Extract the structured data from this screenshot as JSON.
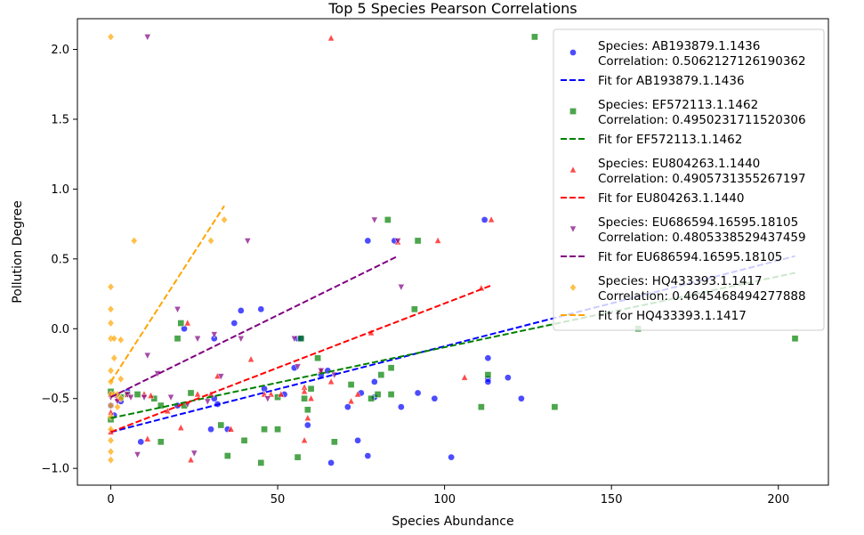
{
  "chart_data": {
    "type": "scatter",
    "title": "Top 5 Species Pearson Correlations",
    "xlabel": "Species Abundance",
    "ylabel": "Pollution Degree",
    "xlim": [
      -10,
      215
    ],
    "ylim": [
      -1.12,
      2.22
    ],
    "xticks": [
      0,
      50,
      100,
      150,
      200
    ],
    "xtick_labels": [
      "0",
      "50",
      "100",
      "150",
      "200"
    ],
    "yticks": [
      -1.0,
      -0.5,
      0.0,
      0.5,
      1.0,
      1.5,
      2.0
    ],
    "ytick_labels": [
      "−1.0",
      "−0.5",
      "0.0",
      "0.5",
      "1.0",
      "1.5",
      "2.0"
    ],
    "grid": false,
    "legend_position": "top-right",
    "series": [
      {
        "name": "AB193879.1.1436",
        "label": "Species: AB193879.1.1436",
        "correlation_label": "Correlation: 0.5062127126190362",
        "fit_label": "Fit for AB193879.1.1436",
        "color": "#0000ff",
        "marker": "circle",
        "fit": [
          [
            0,
            -0.74
          ],
          [
            205,
            0.52
          ]
        ],
        "points": [
          [
            0,
            -0.47
          ],
          [
            0,
            -0.55
          ],
          [
            1,
            -0.62
          ],
          [
            2,
            -0.48
          ],
          [
            3,
            -0.52
          ],
          [
            5,
            -0.45
          ],
          [
            9,
            -0.81
          ],
          [
            20,
            -0.55
          ],
          [
            22,
            0.0
          ],
          [
            31,
            -0.07
          ],
          [
            30,
            -0.72
          ],
          [
            31,
            -0.5
          ],
          [
            32,
            -0.54
          ],
          [
            35,
            -0.72
          ],
          [
            37,
            0.04
          ],
          [
            39,
            0.13
          ],
          [
            45,
            0.14
          ],
          [
            46,
            -0.43
          ],
          [
            52,
            -0.47
          ],
          [
            55,
            -0.28
          ],
          [
            56,
            -0.07
          ],
          [
            57,
            -0.07
          ],
          [
            59,
            -0.69
          ],
          [
            63,
            -0.33
          ],
          [
            65,
            -0.3
          ],
          [
            66,
            -0.96
          ],
          [
            71,
            -0.56
          ],
          [
            74,
            -0.8
          ],
          [
            75,
            -0.46
          ],
          [
            77,
            -0.91
          ],
          [
            77,
            0.63
          ],
          [
            79,
            -0.38
          ],
          [
            79,
            -0.49
          ],
          [
            85,
            0.63
          ],
          [
            87,
            -0.56
          ],
          [
            92,
            -0.46
          ],
          [
            97,
            -0.5
          ],
          [
            102,
            -0.92
          ],
          [
            112,
            0.78
          ],
          [
            113,
            -0.21
          ],
          [
            113,
            -0.36
          ],
          [
            113,
            -0.38
          ],
          [
            119,
            -0.35
          ],
          [
            123,
            -0.5
          ]
        ]
      },
      {
        "name": "EF572113.1.1462",
        "label": "Species: EF572113.1.1462",
        "correlation_label": "Correlation: 0.4950231711520306",
        "fit_label": "Fit for EF572113.1.1462",
        "color": "#008000",
        "marker": "square",
        "fit": [
          [
            0,
            -0.64
          ],
          [
            205,
            0.4
          ]
        ],
        "points": [
          [
            0,
            -0.45
          ],
          [
            0,
            -0.65
          ],
          [
            3,
            -0.49
          ],
          [
            5,
            -0.47
          ],
          [
            8,
            -0.47
          ],
          [
            13,
            -0.5
          ],
          [
            15,
            -0.55
          ],
          [
            15,
            -0.81
          ],
          [
            20,
            -0.07
          ],
          [
            21,
            0.04
          ],
          [
            22,
            -0.55
          ],
          [
            24,
            -0.46
          ],
          [
            33,
            -0.69
          ],
          [
            35,
            -0.91
          ],
          [
            40,
            -0.8
          ],
          [
            45,
            -0.96
          ],
          [
            46,
            -0.72
          ],
          [
            50,
            -0.49
          ],
          [
            50,
            -0.72
          ],
          [
            56,
            -0.92
          ],
          [
            57,
            -0.07
          ],
          [
            58,
            -0.5
          ],
          [
            59,
            -0.58
          ],
          [
            60,
            -0.43
          ],
          [
            62,
            -0.21
          ],
          [
            67,
            -0.81
          ],
          [
            72,
            -0.4
          ],
          [
            78,
            -0.5
          ],
          [
            80,
            -0.47
          ],
          [
            81,
            -0.33
          ],
          [
            83,
            0.78
          ],
          [
            84,
            -0.47
          ],
          [
            84,
            -0.28
          ],
          [
            91,
            0.14
          ],
          [
            92,
            0.63
          ],
          [
            111,
            -0.56
          ],
          [
            113,
            -0.33
          ],
          [
            127,
            2.09
          ],
          [
            133,
            -0.56
          ],
          [
            158,
            0.0
          ],
          [
            205,
            -0.07
          ]
        ]
      },
      {
        "name": "EU804263.1.1440",
        "label": "Species: EU804263.1.1440",
        "correlation_label": "Correlation: 0.4905731355267197",
        "fit_label": "Fit for EU804263.1.1440",
        "color": "#ff0000",
        "marker": "triangle-up",
        "fit": [
          [
            0,
            -0.74
          ],
          [
            114,
            0.31
          ]
        ],
        "points": [
          [
            0,
            -0.47
          ],
          [
            0,
            -0.6
          ],
          [
            0,
            -0.74
          ],
          [
            2,
            -0.5
          ],
          [
            5,
            -0.47
          ],
          [
            10,
            -0.47
          ],
          [
            11,
            -0.79
          ],
          [
            12,
            -0.48
          ],
          [
            17,
            -0.59
          ],
          [
            21,
            -0.71
          ],
          [
            23,
            0.04
          ],
          [
            24,
            -0.94
          ],
          [
            26,
            -0.47
          ],
          [
            30,
            -0.47
          ],
          [
            32,
            -0.34
          ],
          [
            36,
            -0.72
          ],
          [
            42,
            -0.22
          ],
          [
            46,
            -0.47
          ],
          [
            48,
            -0.47
          ],
          [
            51,
            -0.47
          ],
          [
            58,
            -0.42
          ],
          [
            58,
            -0.45
          ],
          [
            58,
            -0.8
          ],
          [
            59,
            -0.64
          ],
          [
            60,
            -0.5
          ],
          [
            63,
            -0.3
          ],
          [
            66,
            -0.38
          ],
          [
            66,
            2.08
          ],
          [
            72,
            -0.52
          ],
          [
            74,
            -0.47
          ],
          [
            78,
            -0.03
          ],
          [
            86,
            0.62
          ],
          [
            98,
            0.63
          ],
          [
            106,
            -0.35
          ],
          [
            111,
            0.29
          ],
          [
            114,
            0.78
          ]
        ]
      },
      {
        "name": "EU686594.16595.18105",
        "label": "Species: EU686594.16595.18105",
        "correlation_label": "Correlation: 0.4805338529437459",
        "fit_label": "Fit for EU686594.16595.18105",
        "color": "#800080",
        "marker": "triangle-down",
        "fit": [
          [
            0,
            -0.49
          ],
          [
            86,
            0.52
          ]
        ],
        "points": [
          [
            0,
            -0.49
          ],
          [
            2,
            -0.52
          ],
          [
            5,
            -0.47
          ],
          [
            6,
            -0.49
          ],
          [
            8,
            -0.9
          ],
          [
            10,
            -0.49
          ],
          [
            11,
            -0.19
          ],
          [
            11,
            2.09
          ],
          [
            14,
            -0.32
          ],
          [
            18,
            -0.49
          ],
          [
            20,
            0.14
          ],
          [
            23,
            -0.54
          ],
          [
            25,
            -0.89
          ],
          [
            26,
            -0.07
          ],
          [
            29,
            -0.52
          ],
          [
            31,
            -0.04
          ],
          [
            33,
            -0.34
          ],
          [
            39,
            -0.07
          ],
          [
            41,
            0.63
          ],
          [
            47,
            -0.5
          ],
          [
            55,
            -0.07
          ],
          [
            56,
            -0.27
          ],
          [
            63,
            -0.3
          ],
          [
            67,
            -0.33
          ],
          [
            79,
            0.78
          ],
          [
            86,
            0.63
          ],
          [
            87,
            0.3
          ]
        ]
      },
      {
        "name": "HQ433393.1.1417",
        "label": "Species: HQ433393.1.1417",
        "correlation_label": "Correlation: 0.4645468494277888",
        "fit_label": "Fit for HQ433393.1.1417",
        "color": "#ffa500",
        "marker": "diamond",
        "fit": [
          [
            0,
            -0.38
          ],
          [
            34,
            0.88
          ]
        ],
        "points": [
          [
            0,
            2.09
          ],
          [
            0,
            0.3
          ],
          [
            0,
            0.14
          ],
          [
            0,
            0.04
          ],
          [
            0,
            -0.07
          ],
          [
            0,
            -0.3
          ],
          [
            0,
            -0.38
          ],
          [
            0,
            -0.47
          ],
          [
            0,
            -0.55
          ],
          [
            0,
            -0.63
          ],
          [
            0,
            -0.72
          ],
          [
            0,
            -0.8
          ],
          [
            0,
            -0.88
          ],
          [
            0,
            -0.94
          ],
          [
            1,
            -0.21
          ],
          [
            1,
            -0.47
          ],
          [
            1,
            -0.07
          ],
          [
            2,
            -0.56
          ],
          [
            2,
            -0.47
          ],
          [
            3,
            -0.5
          ],
          [
            3,
            -0.36
          ],
          [
            3,
            -0.08
          ],
          [
            7,
            0.63
          ],
          [
            30,
            0.63
          ],
          [
            34,
            0.78
          ]
        ]
      }
    ]
  }
}
